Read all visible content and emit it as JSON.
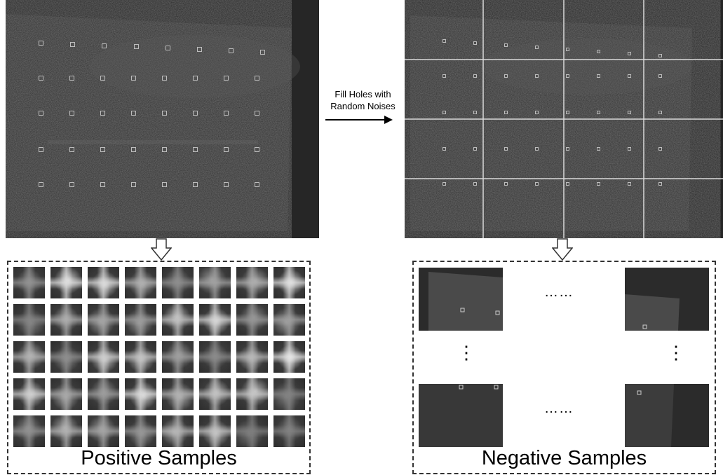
{
  "arrow": {
    "line1": "Fill Holes with",
    "line2": "Random Noises"
  },
  "positive": {
    "caption": "Positive Samples"
  },
  "negative": {
    "caption": "Negative Samples",
    "h_ellipsis": "……",
    "v_ellipsis": "⋮"
  },
  "colors": {
    "image_bg": "#262626",
    "grid_line": "#d9d9d9",
    "marker": "#bdbdbd"
  }
}
